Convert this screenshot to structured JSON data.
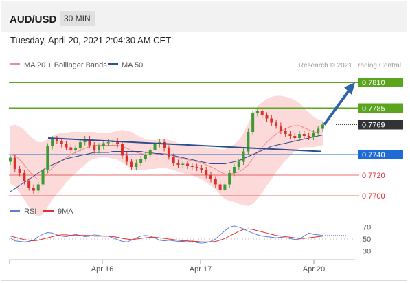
{
  "header": {
    "pair": "AUD/USD",
    "timeframe": "30 MIN"
  },
  "datetime": "Tuesday, April 20, 2021 2:04:30 AM CET",
  "legend": {
    "ma20_bb": "MA 20 + Bollinger Bands",
    "ma50": "MA 50",
    "credit": "Research © 2021 Trading Central",
    "rsi": "RSI",
    "ma9": "9MA"
  },
  "colors": {
    "support_resistance_green": "#5aa51e",
    "pivot_blue": "#1e6bd6",
    "support_red": "#e03030",
    "candle_red": "#d9322b",
    "candle_green": "#3e9a35",
    "bollinger_fill": "#fbd4d4",
    "ma20_line": "#f08a8a",
    "ma50_line": "#2b4f8f",
    "arrow": "#2e63a8",
    "rsi_line": "#5b7fd6",
    "rsi_ma_line": "#e03030"
  },
  "chart_data": [
    {
      "type": "candlestick",
      "title": "AUD/USD",
      "timeframe": "30 MIN",
      "x_ticks": [
        "Apr 16",
        "Apr 17",
        "Apr 20"
      ],
      "ylim": [
        0.769,
        0.782
      ],
      "levels": [
        {
          "value": 0.781,
          "label": "0.7810",
          "style": "resistance"
        },
        {
          "value": 0.7785,
          "label": "0.7785",
          "style": "resistance"
        },
        {
          "value": 0.7769,
          "label": "0.7769",
          "style": "last"
        },
        {
          "value": 0.774,
          "label": "0.7740",
          "style": "pivot"
        },
        {
          "value": 0.772,
          "label": "0.7720",
          "style": "support"
        },
        {
          "value": 0.77,
          "label": "0.7700",
          "style": "support"
        }
      ],
      "close_series": [
        0.7737,
        0.7726,
        0.7722,
        0.7714,
        0.7708,
        0.7705,
        0.7711,
        0.7725,
        0.7748,
        0.7755,
        0.7753,
        0.775,
        0.7747,
        0.7744,
        0.7746,
        0.7752,
        0.7755,
        0.7749,
        0.7744,
        0.7748,
        0.7751,
        0.7752,
        0.7753,
        0.775,
        0.7739,
        0.7733,
        0.7728,
        0.7732,
        0.7736,
        0.774,
        0.7744,
        0.775,
        0.7752,
        0.7746,
        0.7738,
        0.7732,
        0.773,
        0.7731,
        0.7729,
        0.7728,
        0.7727,
        0.7725,
        0.772,
        0.7716,
        0.7711,
        0.7706,
        0.7711,
        0.7722,
        0.7728,
        0.7733,
        0.7743,
        0.7762,
        0.778,
        0.7782,
        0.7778,
        0.7775,
        0.7771,
        0.7768,
        0.7763,
        0.776,
        0.7758,
        0.7756,
        0.776,
        0.7758,
        0.7757,
        0.7761,
        0.7765,
        0.7769
      ],
      "ma20_series": [
        0.774,
        0.7739,
        0.7735,
        0.773,
        0.7724,
        0.7719,
        0.7716,
        0.7717,
        0.7722,
        0.7727,
        0.7731,
        0.7734,
        0.7737,
        0.774,
        0.7742,
        0.7744,
        0.7746,
        0.7748,
        0.7749,
        0.7749,
        0.7749,
        0.7749,
        0.7749,
        0.7749,
        0.7748,
        0.7746,
        0.7744,
        0.7742,
        0.7741,
        0.774,
        0.774,
        0.774,
        0.7741,
        0.7741,
        0.774,
        0.7739,
        0.7737,
        0.7736,
        0.7735,
        0.7734,
        0.7733,
        0.7732,
        0.773,
        0.7728,
        0.7726,
        0.7723,
        0.7721,
        0.7721,
        0.7722,
        0.7723,
        0.7726,
        0.773,
        0.7736,
        0.7742,
        0.7747,
        0.7752,
        0.7756,
        0.776,
        0.7763,
        0.7765,
        0.7767,
        0.7768,
        0.7768,
        0.7766,
        0.7764,
        0.7762,
        0.7761,
        0.7761
      ],
      "ma50_series": [
        0.7704,
        0.7707,
        0.771,
        0.7713,
        0.7716,
        0.7719,
        0.7722,
        0.7725,
        0.7728,
        0.773,
        0.7732,
        0.7734,
        0.7736,
        0.7737,
        0.7738,
        0.7739,
        0.774,
        0.7741,
        0.7742,
        0.7742,
        0.7742,
        0.7742,
        0.7743,
        0.7743,
        0.7743,
        0.7743,
        0.7743,
        0.7743,
        0.7743,
        0.7742,
        0.7742,
        0.7741,
        0.7741,
        0.774,
        0.774,
        0.7739,
        0.7738,
        0.7737,
        0.7736,
        0.7735,
        0.7734,
        0.7733,
        0.7732,
        0.7731,
        0.7731,
        0.7731,
        0.7731,
        0.7732,
        0.7733,
        0.7734,
        0.7736,
        0.7738,
        0.774,
        0.7742,
        0.7744,
        0.7746,
        0.7748,
        0.7749,
        0.775,
        0.7751,
        0.7752,
        0.7753,
        0.7754,
        0.7755,
        0.7756,
        0.7757,
        0.7758,
        0.7759
      ],
      "bollinger_width": [
        0.0028,
        0.003,
        0.0032,
        0.0034,
        0.0035,
        0.0036,
        0.0036,
        0.0035,
        0.0033,
        0.0031,
        0.0029,
        0.0027,
        0.0024,
        0.0022,
        0.002,
        0.0018,
        0.0016,
        0.0014,
        0.0013,
        0.0012,
        0.0012,
        0.0012,
        0.0013,
        0.0014,
        0.0016,
        0.0017,
        0.0018,
        0.0017,
        0.0016,
        0.0015,
        0.0014,
        0.0014,
        0.0014,
        0.0014,
        0.0014,
        0.0014,
        0.0014,
        0.0014,
        0.0014,
        0.0014,
        0.0015,
        0.0016,
        0.0017,
        0.0018,
        0.002,
        0.0022,
        0.0024,
        0.0026,
        0.0028,
        0.0031,
        0.0035,
        0.004,
        0.0044,
        0.0045,
        0.0044,
        0.0042,
        0.004,
        0.0037,
        0.0034,
        0.0031,
        0.0028,
        0.0025,
        0.0022,
        0.0019,
        0.0017,
        0.0015,
        0.0013,
        0.0012
      ],
      "trendline": {
        "from": 0.7756,
        "to": 0.7743
      },
      "arrow_target": 0.781
    },
    {
      "type": "line",
      "title": "RSI",
      "ylim": [
        20,
        80
      ],
      "y_ticks": [
        30,
        50,
        70
      ],
      "series": [
        {
          "name": "RSI",
          "values": [
            52,
            47,
            46,
            45,
            46,
            48,
            54,
            58,
            61,
            60,
            57,
            55,
            54,
            56,
            58,
            56,
            54,
            55,
            57,
            56,
            55,
            55,
            52,
            49,
            46,
            45,
            48,
            52,
            55,
            56,
            55,
            52,
            48,
            47,
            48,
            47,
            46,
            46,
            45,
            47,
            44,
            43,
            44,
            46,
            50,
            57,
            64,
            70,
            72,
            70,
            67,
            63,
            60,
            57,
            55,
            54,
            53,
            52,
            53,
            52,
            51,
            49,
            50,
            55,
            60,
            58,
            57,
            56
          ]
        },
        {
          "name": "9MA",
          "values": [
            55,
            53,
            51,
            49,
            48,
            47,
            48,
            50,
            52,
            54,
            56,
            57,
            57,
            56,
            56,
            56,
            56,
            56,
            55,
            55,
            55,
            55,
            54,
            53,
            51,
            50,
            49,
            50,
            51,
            52,
            53,
            53,
            52,
            51,
            50,
            49,
            48,
            47,
            47,
            46,
            46,
            45,
            45,
            45,
            46,
            48,
            51,
            55,
            59,
            63,
            66,
            67,
            66,
            64,
            62,
            60,
            58,
            56,
            55,
            54,
            53,
            52,
            51,
            51,
            52,
            53,
            54,
            55
          ]
        }
      ]
    }
  ]
}
